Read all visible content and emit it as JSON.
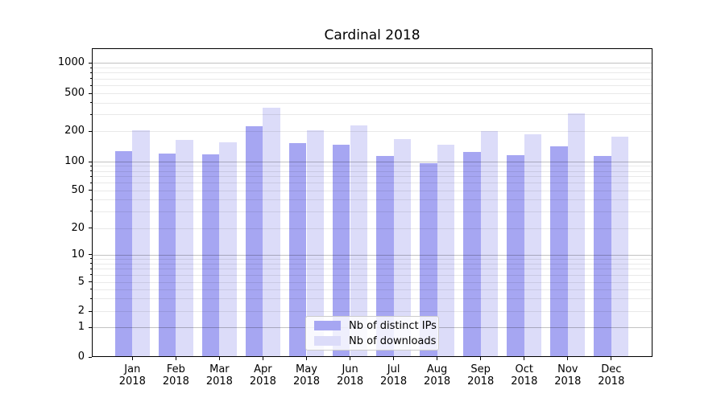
{
  "figure": {
    "background": "#ffffff"
  },
  "chart_data": {
    "type": "bar",
    "title": "Cardinal 2018",
    "categories": [
      "Jan",
      "Feb",
      "Mar",
      "Apr",
      "May",
      "Jun",
      "Jul",
      "Aug",
      "Sep",
      "Oct",
      "Nov",
      "Dec"
    ],
    "year_label": "2018",
    "series": [
      {
        "name": "Nb of distinct IPs",
        "color": "#a6a6f2",
        "values": [
          127,
          120,
          118,
          226,
          153,
          147,
          114,
          96,
          125,
          117,
          141,
          114
        ]
      },
      {
        "name": "Nb of downloads",
        "color": "#dcdcf9",
        "values": [
          205,
          164,
          156,
          355,
          205,
          230,
          167,
          146,
          201,
          187,
          310,
          176
        ]
      }
    ],
    "xlabel": "",
    "ylabel": "",
    "yscale": "symlog",
    "yticks": [
      0,
      1,
      2,
      5,
      10,
      20,
      50,
      100,
      200,
      500,
      1000
    ],
    "major_grid_values": [
      1,
      10,
      100,
      1000
    ],
    "minor_grid_mantissas": [
      2,
      3,
      4,
      5,
      6,
      7,
      8,
      9
    ],
    "ylim": [
      0,
      1400
    ],
    "grid": true,
    "legend_position": "lower-center"
  },
  "colors": {
    "bar_distinct_ips": "#a6a6f2",
    "bar_downloads": "#dcdcf9",
    "major_gridline": "#c2c2c2",
    "minor_gridline": "#ebebeb",
    "axis": "#000000",
    "text": "#000000"
  }
}
